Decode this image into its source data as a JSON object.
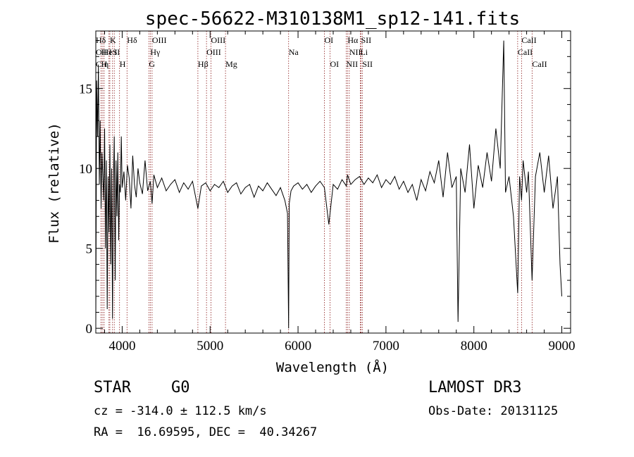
{
  "chart_data": {
    "type": "line",
    "title": "spec-56622-M310138M1_sp12-141.fits",
    "xlabel": "Wavelength (Å)",
    "ylabel": "Flux (relative)",
    "xlim": [
      3700,
      9100
    ],
    "ylim": [
      -0.3,
      18.6
    ],
    "x_ticks": [
      4000,
      5000,
      6000,
      7000,
      8000,
      9000
    ],
    "y_ticks": [
      0,
      5,
      10,
      15
    ],
    "series": [
      {
        "x": [
          3700,
          3710,
          3720,
          3730,
          3740,
          3750,
          3760,
          3770,
          3780,
          3790,
          3800,
          3810,
          3820,
          3830,
          3840,
          3850,
          3860,
          3870,
          3880,
          3890,
          3900,
          3910,
          3920,
          3930,
          3940,
          3950,
          3960,
          3970,
          3980,
          3990,
          4000,
          4020,
          4040,
          4060,
          4080,
          4100,
          4120,
          4140,
          4160,
          4180,
          4200,
          4230,
          4260,
          4290,
          4320,
          4340,
          4360,
          4400,
          4450,
          4500,
          4550,
          4600,
          4650,
          4700,
          4750,
          4800,
          4861,
          4900,
          4950,
          5000,
          5050,
          5100,
          5150,
          5200,
          5250,
          5300,
          5350,
          5400,
          5450,
          5500,
          5550,
          5600,
          5650,
          5700,
          5750,
          5800,
          5850,
          5880,
          5893,
          5900,
          5920,
          5950,
          6000,
          6050,
          6100,
          6150,
          6200,
          6250,
          6300,
          6350,
          6400,
          6450,
          6500,
          6550,
          6563,
          6600,
          6650,
          6700,
          6750,
          6800,
          6850,
          6900,
          6950,
          7000,
          7050,
          7100,
          7150,
          7200,
          7250,
          7300,
          7350,
          7400,
          7450,
          7500,
          7550,
          7600,
          7650,
          7700,
          7750,
          7800,
          7820,
          7850,
          7900,
          7950,
          8000,
          8050,
          8100,
          8150,
          8200,
          8250,
          8300,
          8340,
          8360,
          8400,
          8450,
          8498,
          8520,
          8542,
          8560,
          8600,
          8620,
          8662,
          8700,
          8750,
          8800,
          8850,
          8900,
          8950,
          8980,
          9000
        ],
        "y": [
          0.2,
          15.5,
          12.0,
          16.5,
          9.0,
          13.0,
          7.5,
          11.0,
          9.5,
          8.0,
          12.5,
          5.0,
          10.5,
          1.2,
          9.5,
          6.0,
          11.5,
          4.0,
          10.0,
          0.6,
          9.0,
          12.0,
          3.0,
          10.5,
          7.0,
          11.0,
          5.5,
          9.0,
          8.5,
          12.0,
          8.8,
          9.8,
          8.0,
          10.2,
          9.4,
          7.5,
          10.8,
          9.0,
          8.2,
          10.0,
          9.1,
          8.4,
          10.5,
          8.6,
          9.2,
          7.8,
          9.6,
          8.8,
          9.4,
          8.6,
          9.0,
          9.3,
          8.5,
          9.1,
          8.7,
          9.2,
          7.5,
          8.9,
          9.1,
          8.6,
          9.0,
          8.8,
          9.2,
          8.5,
          8.9,
          9.1,
          8.4,
          8.8,
          9.0,
          8.2,
          8.9,
          8.6,
          9.1,
          8.7,
          8.3,
          8.8,
          8.0,
          7.2,
          0.0,
          7.8,
          8.6,
          8.9,
          9.1,
          8.7,
          9.0,
          8.5,
          8.9,
          9.2,
          8.8,
          6.5,
          9.0,
          8.7,
          9.3,
          8.9,
          9.6,
          9.0,
          9.3,
          9.5,
          9.0,
          9.4,
          9.1,
          9.6,
          8.8,
          9.3,
          9.0,
          9.5,
          8.7,
          9.2,
          8.5,
          9.0,
          8.0,
          9.3,
          8.6,
          9.8,
          9.1,
          10.5,
          8.2,
          11.0,
          8.8,
          9.5,
          0.4,
          10.0,
          8.5,
          11.5,
          7.5,
          10.2,
          8.8,
          11.0,
          9.2,
          12.5,
          10.0,
          18.0,
          8.5,
          9.5,
          7.0,
          2.2,
          9.5,
          8.0,
          10.5,
          8.5,
          9.8,
          3.0,
          9.5,
          11.0,
          8.5,
          10.8,
          7.5,
          9.5,
          4.0,
          2.0
        ]
      }
    ],
    "line_markers": [
      {
        "label": "Hδ",
        "x": 3700,
        "row": 1
      },
      {
        "label": "O",
        "x": 3700,
        "row": 2
      },
      {
        "label": "C",
        "x": 3700,
        "row": 3
      },
      {
        "label": "H",
        "x": 3760,
        "row": 2
      },
      {
        "label": "H",
        "x": 3760,
        "row": 3
      },
      {
        "label": "He",
        "x": 3779,
        "row": 2
      },
      {
        "label": "η",
        "x": 3795,
        "row": 3
      },
      {
        "label": "K",
        "x": 3860,
        "row": 1
      },
      {
        "label": "I",
        "x": 3850,
        "row": 2
      },
      {
        "label": "S",
        "x": 3890,
        "row": 2
      },
      {
        "label": "II",
        "x": 3910,
        "row": 2
      },
      {
        "label": "H",
        "x": 3970,
        "row": 3
      },
      {
        "label": "Hδ",
        "x": 4055,
        "row": 1
      },
      {
        "label": "OIII",
        "x": 4340,
        "row": 1
      },
      {
        "label": "Hγ",
        "x": 4320,
        "row": 2
      },
      {
        "label": "G",
        "x": 4304,
        "row": 3
      },
      {
        "label": "Hβ",
        "x": 4861,
        "row": 3
      },
      {
        "label": "OIII",
        "x": 5010,
        "row": 1
      },
      {
        "label": "OIII",
        "x": 4959,
        "row": 2
      },
      {
        "label": "Mg",
        "x": 5175,
        "row": 3
      },
      {
        "label": "Na",
        "x": 5893,
        "row": 2
      },
      {
        "label": "OI",
        "x": 6300,
        "row": 1
      },
      {
        "label": "OI",
        "x": 6364,
        "row": 3
      },
      {
        "label": "Hα",
        "x": 6563,
        "row": 1
      },
      {
        "label": "SII",
        "x": 6716,
        "row": 1
      },
      {
        "label": "NII",
        "x": 6583,
        "row": 2
      },
      {
        "label": "Li",
        "x": 6708,
        "row": 2
      },
      {
        "label": "NII",
        "x": 6548,
        "row": 3
      },
      {
        "label": "SII",
        "x": 6731,
        "row": 3
      },
      {
        "label": "CaII",
        "x": 8542,
        "row": 1
      },
      {
        "label": "CaII",
        "x": 8498,
        "row": 2
      },
      {
        "label": "CaII",
        "x": 8662,
        "row": 3
      }
    ],
    "colors": {
      "spectrum": "#000000",
      "marker_line": "#8b1a1a",
      "axis": "#000000"
    }
  },
  "info": {
    "object_class": "STAR",
    "subclass": "G0",
    "survey": "LAMOST DR3",
    "redshift": "cz = -314.0 ± 112.5 km/s",
    "obs_date": "Obs-Date: 20131125",
    "coords": "RA =  16.69595, DEC =  40.34267"
  }
}
